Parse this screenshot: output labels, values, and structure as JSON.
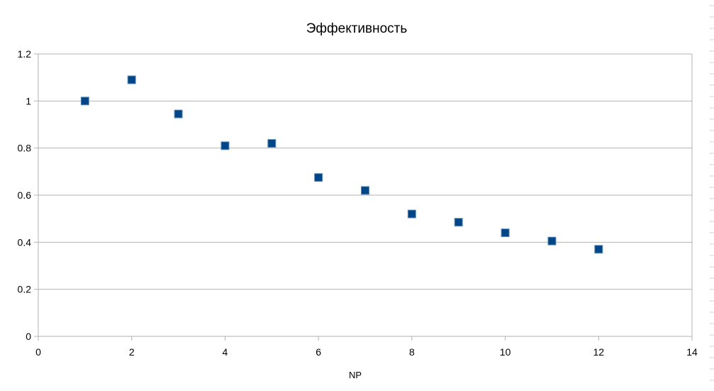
{
  "chart_data": {
    "type": "scatter",
    "title": "Эффективность",
    "xlabel": "NP",
    "ylabel": "",
    "xlim": [
      0,
      14
    ],
    "ylim": [
      0,
      1.2
    ],
    "xticks": [
      "0",
      "2",
      "4",
      "6",
      "8",
      "10",
      "12",
      "14"
    ],
    "yticks": [
      "0",
      "0.2",
      "0.4",
      "0.6",
      "0.8",
      "1",
      "1.2"
    ],
    "grid": true,
    "legend": "none",
    "series": [
      {
        "color": "#004586",
        "marker": "square",
        "x": [
          1,
          2,
          3,
          4,
          5,
          6,
          7,
          8,
          9,
          10,
          11,
          12
        ],
        "y": [
          1.0,
          1.09,
          0.945,
          0.81,
          0.82,
          0.675,
          0.62,
          0.52,
          0.485,
          0.44,
          0.405,
          0.37
        ]
      }
    ]
  },
  "colors": {
    "marker": "#004586",
    "marker_edge": "#5f8fbf",
    "grid": "#b3b3b3",
    "axis": "#b3b3b3",
    "text": "#000000"
  }
}
